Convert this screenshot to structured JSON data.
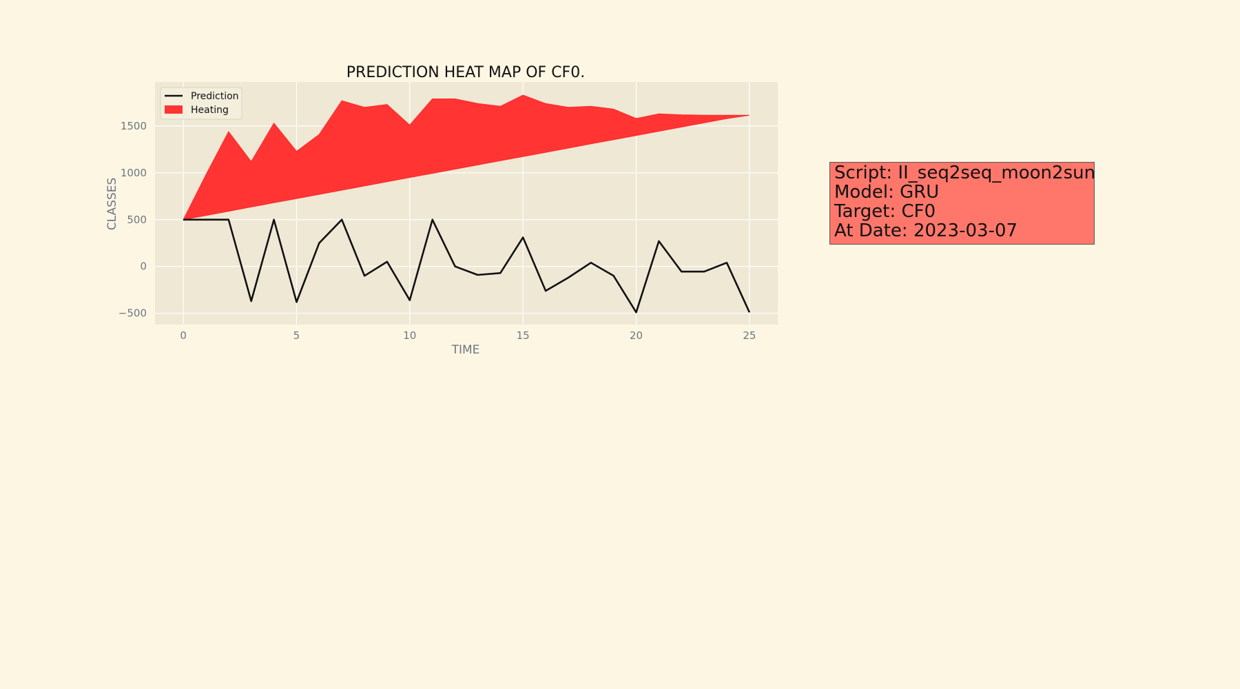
{
  "chart_data": {
    "type": "area",
    "title": "PREDICTION HEAT MAP OF CF0.",
    "xlabel": "TIME",
    "ylabel": "CLASSES",
    "xlim": [
      -1.25,
      26.25
    ],
    "ylim": [
      -620,
      1970
    ],
    "xticks": [
      0,
      5,
      10,
      15,
      20,
      25
    ],
    "yticks": [
      -500,
      0,
      500,
      1000,
      1500
    ],
    "ytick_labels": [
      "−500",
      "0",
      "500",
      "1000",
      "1500"
    ],
    "grid": true,
    "legend_position": "upper-left",
    "legend": [
      "Prediction",
      "Heating"
    ],
    "colors": {
      "prediction": "#111111",
      "heating": "#ff2a2a",
      "plot_bg": "#eee8d5",
      "grid": "#ffffff"
    },
    "x": [
      0,
      1,
      2,
      3,
      4,
      5,
      6,
      7,
      8,
      9,
      10,
      11,
      12,
      13,
      14,
      15,
      16,
      17,
      18,
      19,
      20,
      21,
      22,
      23,
      24,
      25
    ],
    "series": [
      {
        "name": "Prediction",
        "kind": "line",
        "values": [
          500,
          500,
          500,
          -370,
          500,
          -380,
          250,
          500,
          -100,
          50,
          -360,
          500,
          0,
          -90,
          -70,
          310,
          -260,
          -120,
          40,
          -100,
          -490,
          270,
          -55,
          -55,
          40,
          -490
        ]
      },
      {
        "name": "Heating",
        "kind": "fill_between",
        "upper": [
          500,
          980,
          1440,
          1120,
          1530,
          1230,
          1410,
          1770,
          1700,
          1730,
          1510,
          1790,
          1790,
          1740,
          1710,
          1830,
          1740,
          1700,
          1710,
          1680,
          1580,
          1630,
          1620,
          1615,
          1615,
          1615
        ],
        "lower": [
          500,
          545,
          590,
          635,
          680,
          725,
          770,
          815,
          860,
          905,
          950,
          994,
          1039,
          1084,
          1129,
          1174,
          1219,
          1264,
          1309,
          1354,
          1399,
          1444,
          1489,
          1534,
          1579,
          1615
        ]
      }
    ]
  },
  "info": {
    "script": "Script: II_seq2seq_moon2sun",
    "model": "Model: GRU",
    "target": "Target: CF0",
    "date": "At Date: 2023-03-07"
  }
}
